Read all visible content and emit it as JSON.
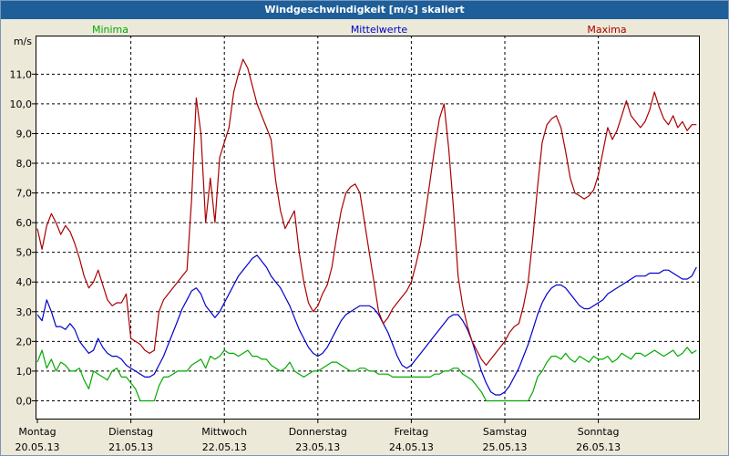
{
  "window": {
    "title": "Windgeschwindigkeit [m/s] skaliert"
  },
  "chart_data": {
    "type": "line",
    "title": "Windgeschwindigkeit [m/s] skaliert",
    "ylabel": "m/s",
    "ylim": [
      -0.6,
      12.3
    ],
    "yticks": [
      0,
      1,
      2,
      3,
      4,
      5,
      6,
      7,
      8,
      9,
      10,
      11
    ],
    "ytick_labels": [
      "0,0",
      "1,0",
      "2,0",
      "3,0",
      "4,0",
      "5,0",
      "6,0",
      "7,0",
      "8,0",
      "9,0",
      "10,0",
      "11,0"
    ],
    "xlim_days": [
      0,
      7.05
    ],
    "x_day_ticks": [
      {
        "day": "Montag",
        "date": "20.05.13"
      },
      {
        "day": "Dienstag",
        "date": "21.05.13"
      },
      {
        "day": "Mittwoch",
        "date": "22.05.13"
      },
      {
        "day": "Donnerstag",
        "date": "23.05.13"
      },
      {
        "day": "Freitag",
        "date": "24.05.13"
      },
      {
        "day": "Samstag",
        "date": "25.05.13"
      },
      {
        "day": "Sonntag",
        "date": "26.05.13"
      }
    ],
    "grid": true,
    "legend_position": "top",
    "sample_interval_days": 0.05,
    "series": [
      {
        "name": "Minima",
        "color": "#00aa00",
        "values": [
          1.3,
          1.7,
          1.1,
          1.4,
          1.0,
          1.3,
          1.2,
          1.0,
          1.0,
          1.1,
          0.7,
          0.4,
          1.0,
          0.9,
          0.8,
          0.7,
          1.0,
          1.1,
          0.8,
          0.8,
          0.6,
          0.4,
          0.0,
          0.0,
          0.0,
          0.0,
          0.5,
          0.8,
          0.8,
          0.9,
          1.0,
          1.0,
          1.0,
          1.2,
          1.3,
          1.4,
          1.1,
          1.5,
          1.4,
          1.5,
          1.7,
          1.6,
          1.6,
          1.5,
          1.6,
          1.7,
          1.5,
          1.5,
          1.4,
          1.4,
          1.2,
          1.1,
          1.0,
          1.1,
          1.3,
          1.0,
          0.9,
          0.8,
          0.9,
          1.0,
          1.0,
          1.1,
          1.2,
          1.3,
          1.3,
          1.2,
          1.1,
          1.0,
          1.0,
          1.1,
          1.1,
          1.0,
          1.0,
          0.9,
          0.9,
          0.9,
          0.8,
          0.8,
          0.8,
          0.8,
          0.8,
          0.8,
          0.8,
          0.8,
          0.8,
          0.9,
          0.9,
          1.0,
          1.0,
          1.1,
          1.1,
          0.9,
          0.8,
          0.7,
          0.5,
          0.3,
          0.0,
          0.0,
          0.0,
          0.0,
          0.0,
          0.0,
          0.0,
          0.0,
          0.0,
          0.0,
          0.3,
          0.8,
          1.0,
          1.3,
          1.5,
          1.5,
          1.4,
          1.6,
          1.4,
          1.3,
          1.5,
          1.4,
          1.3,
          1.5,
          1.4,
          1.4,
          1.5,
          1.3,
          1.4,
          1.6,
          1.5,
          1.4,
          1.6,
          1.6,
          1.5,
          1.6,
          1.7,
          1.6,
          1.5,
          1.6,
          1.7,
          1.5,
          1.6,
          1.8,
          1.6,
          1.7
        ]
      },
      {
        "name": "Mittelwerte",
        "color": "#0000cc",
        "values": [
          2.9,
          2.7,
          3.4,
          3.0,
          2.5,
          2.5,
          2.4,
          2.6,
          2.4,
          2.0,
          1.8,
          1.6,
          1.7,
          2.1,
          1.8,
          1.6,
          1.5,
          1.5,
          1.4,
          1.2,
          1.1,
          1.0,
          0.9,
          0.8,
          0.8,
          0.9,
          1.2,
          1.5,
          1.9,
          2.3,
          2.7,
          3.1,
          3.4,
          3.7,
          3.8,
          3.6,
          3.2,
          3.0,
          2.8,
          3.0,
          3.3,
          3.6,
          3.9,
          4.2,
          4.4,
          4.6,
          4.8,
          4.9,
          4.7,
          4.5,
          4.2,
          4.0,
          3.8,
          3.5,
          3.2,
          2.8,
          2.4,
          2.1,
          1.8,
          1.6,
          1.5,
          1.6,
          1.8,
          2.1,
          2.4,
          2.7,
          2.9,
          3.0,
          3.1,
          3.2,
          3.2,
          3.2,
          3.1,
          2.9,
          2.6,
          2.3,
          1.9,
          1.5,
          1.2,
          1.1,
          1.2,
          1.4,
          1.6,
          1.8,
          2.0,
          2.2,
          2.4,
          2.6,
          2.8,
          2.9,
          2.9,
          2.7,
          2.4,
          2.0,
          1.5,
          1.0,
          0.6,
          0.3,
          0.2,
          0.2,
          0.3,
          0.5,
          0.8,
          1.1,
          1.5,
          1.9,
          2.4,
          2.9,
          3.3,
          3.6,
          3.8,
          3.9,
          3.9,
          3.8,
          3.6,
          3.4,
          3.2,
          3.1,
          3.1,
          3.2,
          3.3,
          3.4,
          3.6,
          3.7,
          3.8,
          3.9,
          4.0,
          4.1,
          4.2,
          4.2,
          4.2,
          4.3,
          4.3,
          4.3,
          4.4,
          4.4,
          4.3,
          4.2,
          4.1,
          4.1,
          4.2,
          4.5
        ]
      },
      {
        "name": "Maxima",
        "color": "#aa0000",
        "values": [
          5.8,
          5.1,
          5.9,
          6.3,
          6.0,
          5.6,
          5.9,
          5.7,
          5.3,
          4.8,
          4.2,
          3.8,
          4.0,
          4.4,
          3.9,
          3.4,
          3.2,
          3.3,
          3.3,
          3.6,
          2.1,
          2.0,
          1.9,
          1.7,
          1.6,
          1.7,
          3.0,
          3.4,
          3.6,
          3.8,
          4.0,
          4.2,
          4.4,
          6.8,
          10.2,
          9.0,
          6.0,
          7.5,
          6.0,
          8.2,
          8.7,
          9.2,
          10.4,
          11.0,
          11.5,
          11.2,
          10.6,
          10.0,
          9.6,
          9.2,
          8.8,
          7.4,
          6.4,
          5.8,
          6.1,
          6.4,
          5.0,
          4.0,
          3.3,
          3.0,
          3.2,
          3.6,
          3.9,
          4.5,
          5.5,
          6.4,
          7.0,
          7.2,
          7.3,
          7.0,
          6.0,
          5.0,
          4.0,
          3.0,
          2.6,
          2.8,
          3.1,
          3.3,
          3.5,
          3.7,
          4.0,
          4.6,
          5.3,
          6.3,
          7.4,
          8.5,
          9.5,
          10.0,
          8.5,
          6.5,
          4.2,
          3.2,
          2.5,
          2.0,
          1.7,
          1.4,
          1.2,
          1.4,
          1.6,
          1.8,
          2.0,
          2.3,
          2.5,
          2.6,
          3.2,
          4.0,
          5.5,
          7.2,
          8.7,
          9.3,
          9.5,
          9.6,
          9.2,
          8.4,
          7.5,
          7.0,
          6.9,
          6.8,
          6.9,
          7.1,
          7.6,
          8.4,
          9.2,
          8.8,
          9.1,
          9.6,
          10.1,
          9.6,
          9.4,
          9.2,
          9.4,
          9.8,
          10.4,
          9.9,
          9.5,
          9.3,
          9.6,
          9.2,
          9.4,
          9.1,
          9.3,
          9.3
        ]
      }
    ]
  }
}
